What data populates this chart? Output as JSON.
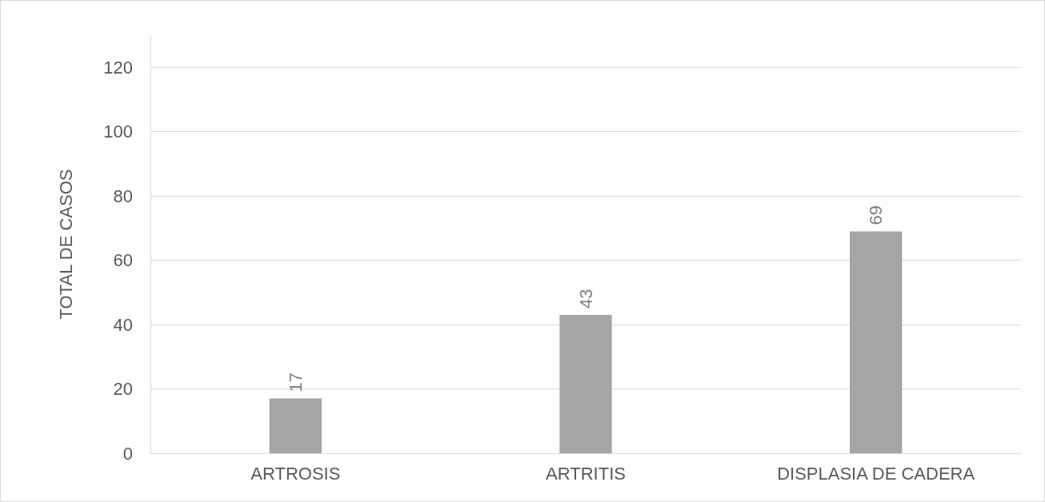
{
  "chart_data": {
    "type": "bar",
    "ylabel": "TOTAL DE CASOS",
    "categories": [
      "ARTROSIS",
      "ARTRITIS",
      "DISPLASIA DE CADERA"
    ],
    "values": [
      17,
      43,
      69
    ],
    "color": "#a5a5a5",
    "ylim": [
      0,
      130
    ],
    "yticks": [
      0,
      20,
      40,
      60,
      80,
      100,
      120
    ],
    "grid": "y",
    "data_labels": true
  }
}
